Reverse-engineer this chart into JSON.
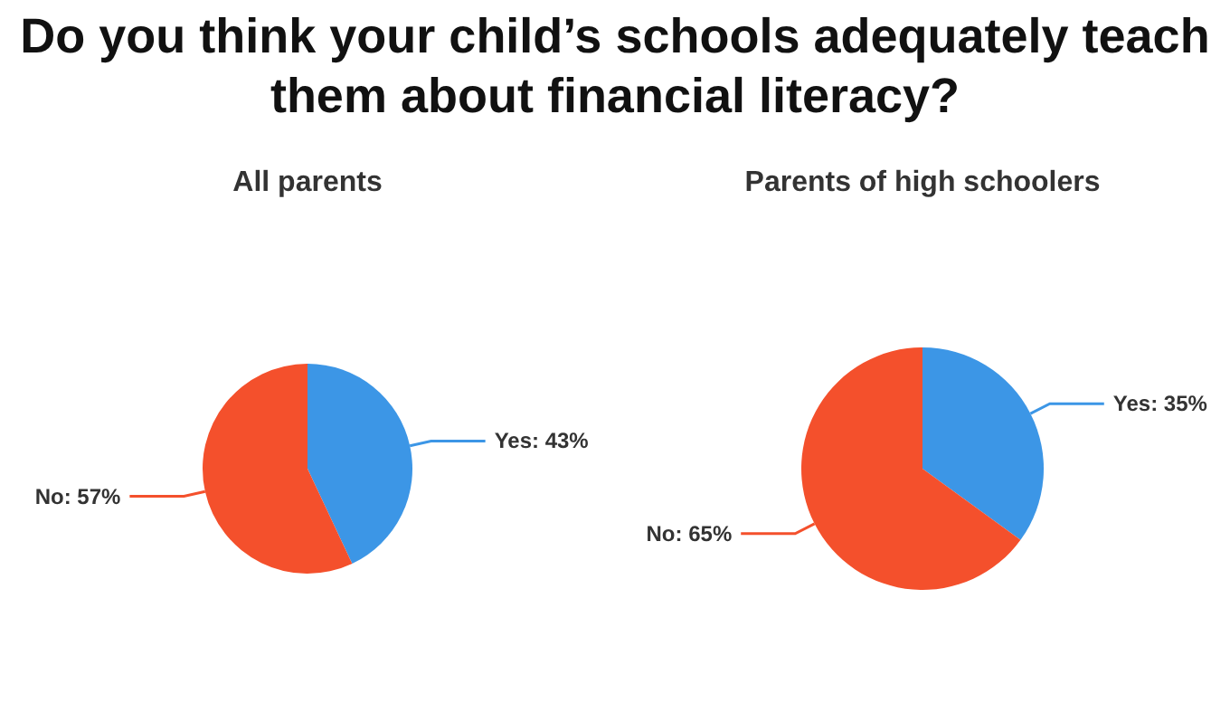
{
  "chart_data": [
    {
      "type": "pie",
      "title": "Do you think your child’s schools adequately teach them about financial literacy?",
      "subtitle": "All parents",
      "categories": [
        "Yes",
        "No"
      ],
      "values": [
        43,
        57
      ],
      "colors": [
        "#3c96e6",
        "#f4502c"
      ],
      "value_labels": [
        "43%",
        "57%"
      ]
    },
    {
      "type": "pie",
      "subtitle": "Parents of high schoolers",
      "categories": [
        "Yes",
        "No"
      ],
      "values": [
        35,
        65
      ],
      "colors": [
        "#3c96e6",
        "#f4502c"
      ],
      "value_labels": [
        "35%",
        "65%"
      ]
    }
  ]
}
